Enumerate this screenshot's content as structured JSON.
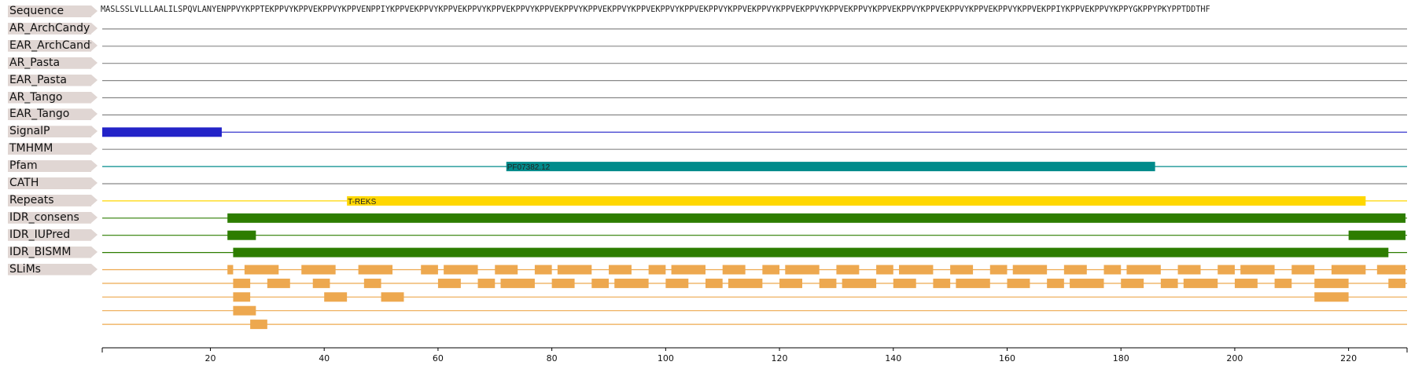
{
  "sequence": {
    "label": "Sequence",
    "text": "MASLSSLVLLLAALILSPQVLANYENPPVYKPPTEKPPVYKPPVEKPPVYKPPVENPPIYKPPVEKPPVYKPPVEKPPVYKPPVEKPPVYKPPVEKPPVYKPPVEKPPVYKPPVEKPPVYKPPVEKPPVYKPPVEKPPVYKPPVEKPPVYKPPVEKPPVYKPPVEKPPVYKPPVEKPPVYKPPVEKPPVYKPPVEKPPIYKPPVEKPPVYKPPYGKPPYPKYPPTDDTHF",
    "length": 230
  },
  "colors": {
    "label_bg": "#e0d6d3",
    "baseline": "#888888",
    "signalp": "#2323c8",
    "pfam": "#008b8b",
    "repeats": "#ffd700",
    "idr": "#2d7d00",
    "slims": "#eda84f"
  },
  "tracks": [
    {
      "id": "ar-archcandy",
      "label": "AR_ArchCandy",
      "color": "#888888",
      "features": []
    },
    {
      "id": "ear-archcandy",
      "label": "EAR_ArchCandy",
      "color": "#888888",
      "features": []
    },
    {
      "id": "ar-pasta",
      "label": "AR_Pasta",
      "color": "#888888",
      "features": []
    },
    {
      "id": "ear-pasta",
      "label": "EAR_Pasta",
      "color": "#888888",
      "features": []
    },
    {
      "id": "ar-tango",
      "label": "AR_Tango",
      "color": "#888888",
      "features": []
    },
    {
      "id": "ear-tango",
      "label": "EAR_Tango",
      "color": "#888888",
      "features": []
    },
    {
      "id": "signalp",
      "label": "SignalP",
      "color": "#2323c8",
      "features": [
        {
          "start": 1,
          "end": 22
        }
      ]
    },
    {
      "id": "tmhmm",
      "label": "TMHMM",
      "color": "#888888",
      "features": []
    },
    {
      "id": "pfam",
      "label": "Pfam",
      "color": "#008b8b",
      "features": [
        {
          "start": 72,
          "end": 186,
          "text": "PF07382.12"
        }
      ]
    },
    {
      "id": "cath",
      "label": "CATH",
      "color": "#888888",
      "features": []
    },
    {
      "id": "repeats",
      "label": "Repeats",
      "color": "#ffd700",
      "features": [
        {
          "start": 44,
          "end": 223,
          "text": "T-REKS"
        }
      ]
    },
    {
      "id": "idr-consens",
      "label": "IDR_consens",
      "color": "#2d7d00",
      "features": [
        {
          "start": 23,
          "end": 230
        }
      ]
    },
    {
      "id": "idr-iupred",
      "label": "IDR_IUPred",
      "color": "#2d7d00",
      "features": [
        {
          "start": 23,
          "end": 28
        },
        {
          "start": 220,
          "end": 230
        }
      ]
    },
    {
      "id": "idr-bismm",
      "label": "IDR_BISMM",
      "color": "#2d7d00",
      "features": [
        {
          "start": 24,
          "end": 227
        }
      ]
    },
    {
      "id": "slims",
      "label": "SLiMs",
      "color": "#eda84f",
      "features": []
    }
  ],
  "slims_rows": [
    [
      [
        23,
        24
      ],
      [
        26,
        32
      ],
      [
        36,
        42
      ],
      [
        46,
        52
      ],
      [
        57,
        60
      ],
      [
        61,
        67
      ],
      [
        70,
        74
      ],
      [
        77,
        80
      ],
      [
        81,
        87
      ],
      [
        90,
        94
      ],
      [
        97,
        100
      ],
      [
        101,
        107
      ],
      [
        110,
        114
      ],
      [
        117,
        120
      ],
      [
        121,
        127
      ],
      [
        130,
        134
      ],
      [
        137,
        140
      ],
      [
        141,
        147
      ],
      [
        150,
        154
      ],
      [
        157,
        160
      ],
      [
        161,
        167
      ],
      [
        170,
        174
      ],
      [
        177,
        180
      ],
      [
        181,
        187
      ],
      [
        190,
        194
      ],
      [
        197,
        200
      ],
      [
        201,
        207
      ],
      [
        210,
        214
      ],
      [
        217,
        223
      ],
      [
        225,
        230
      ]
    ],
    [
      [
        24,
        27
      ],
      [
        30,
        34
      ],
      [
        38,
        41
      ],
      [
        47,
        50
      ],
      [
        60,
        64
      ],
      [
        67,
        70
      ],
      [
        71,
        77
      ],
      [
        80,
        84
      ],
      [
        87,
        90
      ],
      [
        91,
        97
      ],
      [
        100,
        104
      ],
      [
        107,
        110
      ],
      [
        111,
        117
      ],
      [
        120,
        124
      ],
      [
        127,
        130
      ],
      [
        131,
        137
      ],
      [
        140,
        144
      ],
      [
        147,
        150
      ],
      [
        151,
        157
      ],
      [
        160,
        164
      ],
      [
        167,
        170
      ],
      [
        171,
        177
      ],
      [
        180,
        184
      ],
      [
        187,
        190
      ],
      [
        191,
        197
      ],
      [
        200,
        204
      ],
      [
        207,
        210
      ],
      [
        214,
        220
      ],
      [
        227,
        230
      ]
    ],
    [
      [
        24,
        27
      ],
      [
        40,
        44
      ],
      [
        50,
        54
      ],
      [
        214,
        220
      ]
    ],
    [
      [
        24,
        28
      ]
    ],
    [
      [
        27,
        30
      ]
    ]
  ],
  "axis": {
    "min": 1,
    "max": 230,
    "ticks": [
      20,
      40,
      60,
      80,
      100,
      120,
      140,
      160,
      180,
      200,
      220
    ]
  }
}
